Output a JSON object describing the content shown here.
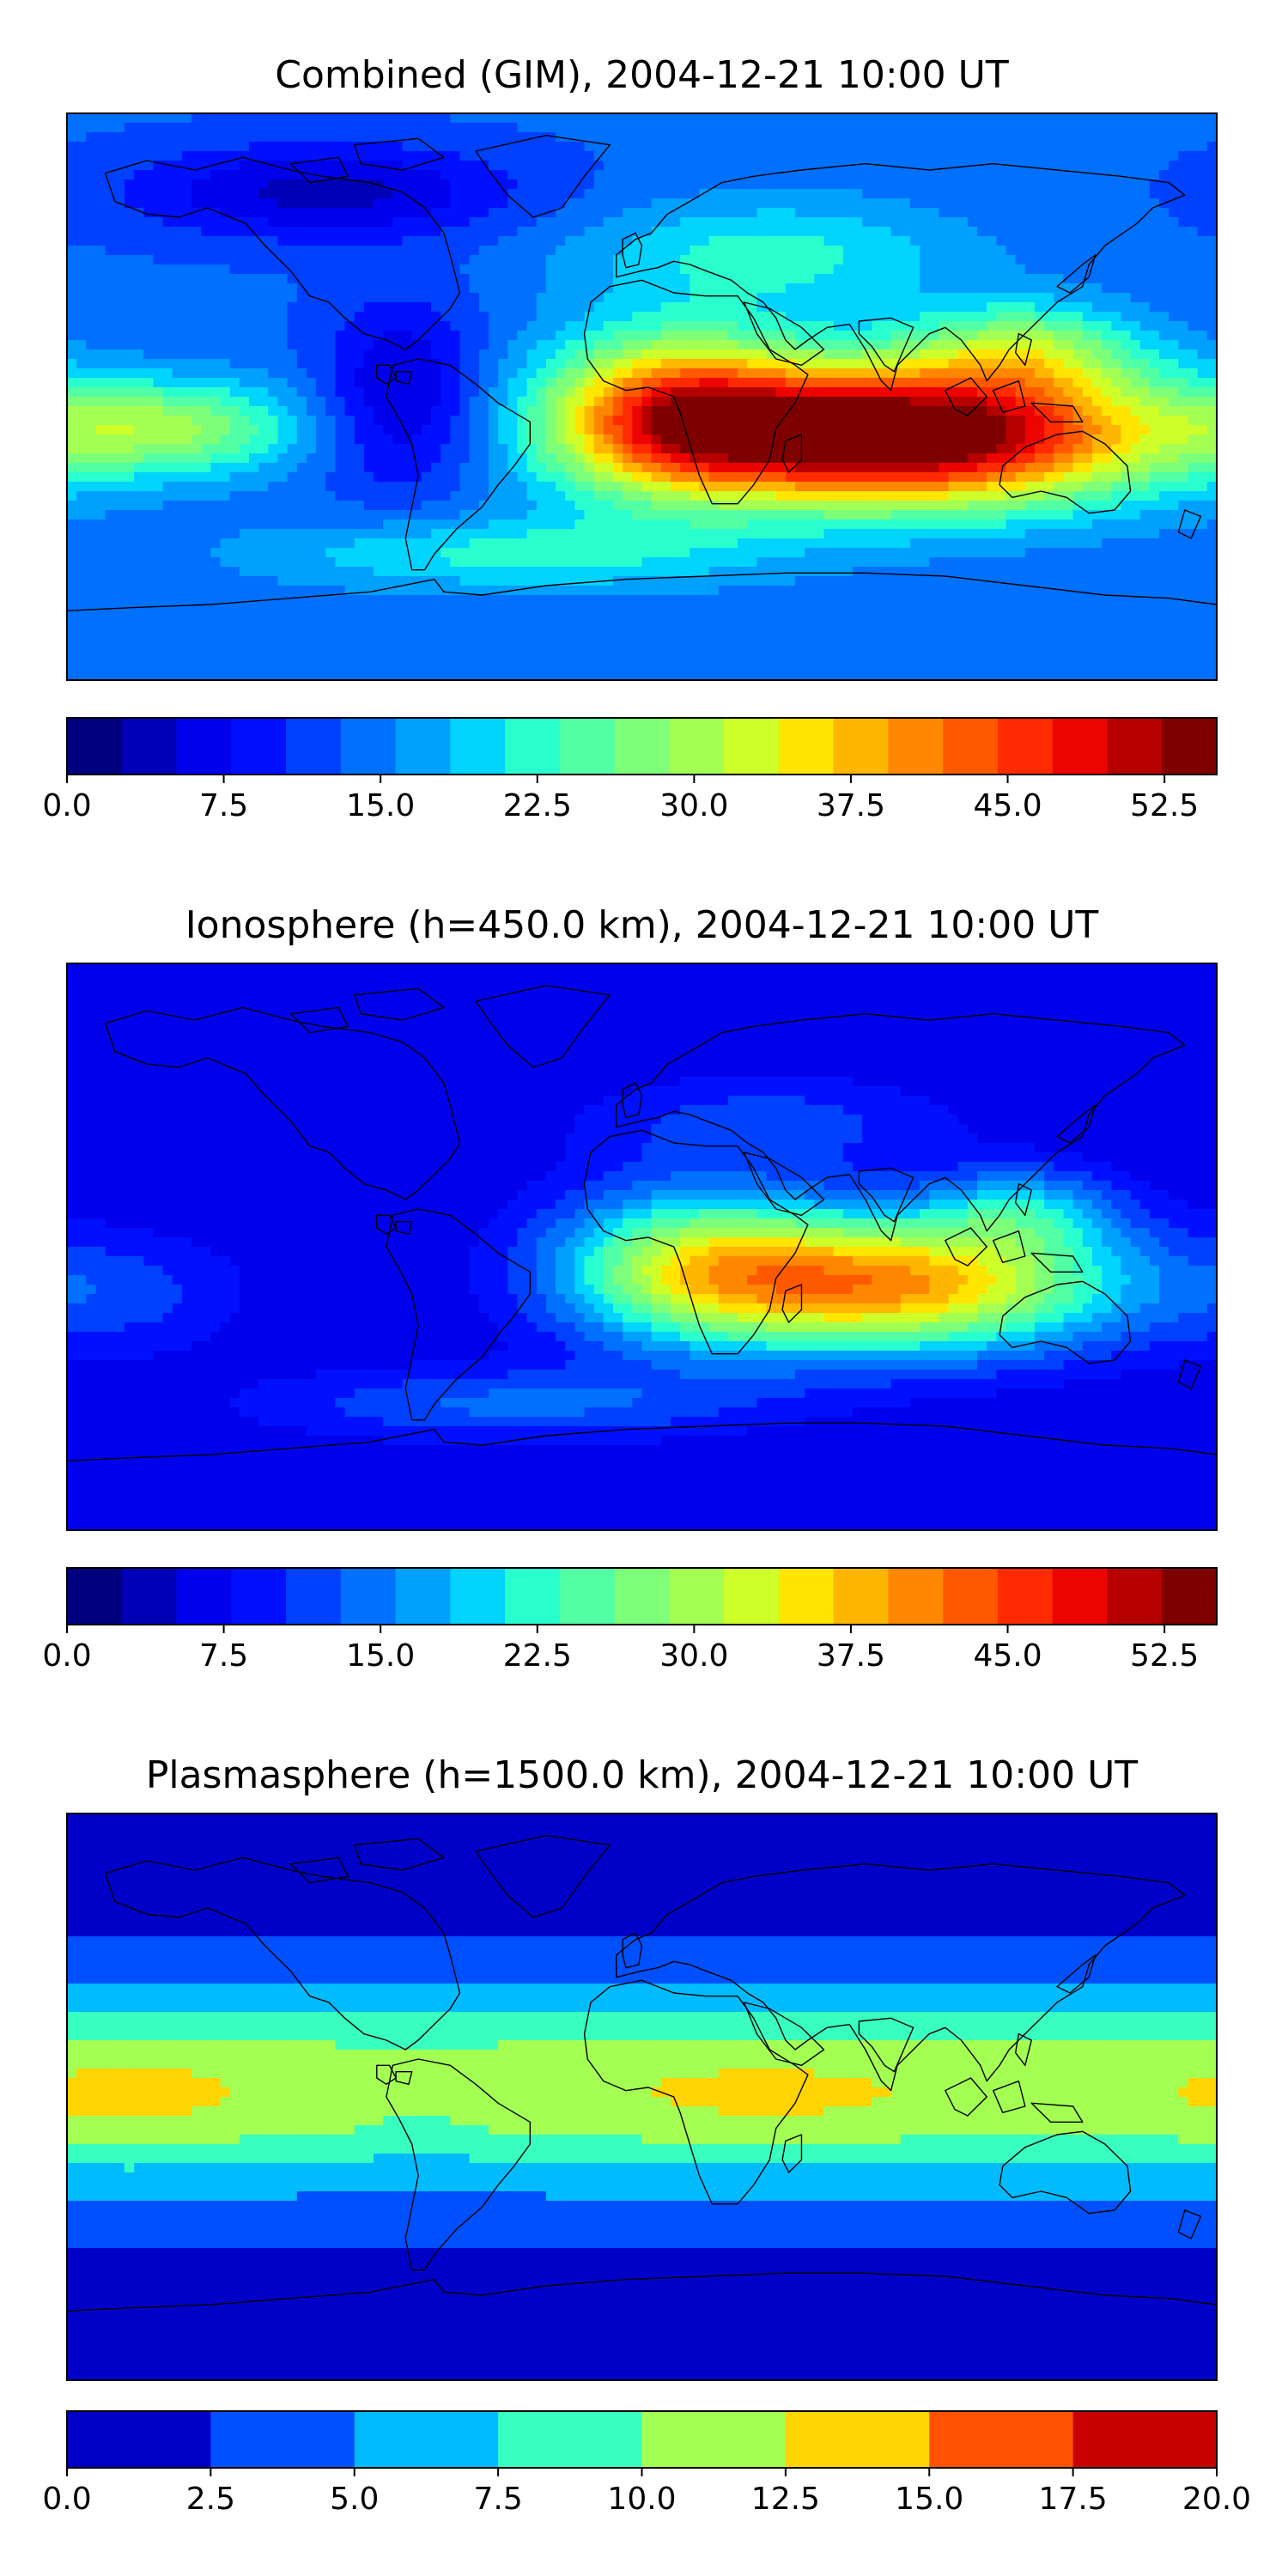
{
  "chart_data": [
    {
      "type": "heatmap",
      "title": "Combined (GIM), 2004-12-21 10:00 UT",
      "colorbar": {
        "min": 0.0,
        "max": 55.0,
        "step": 2.5,
        "tick_values": [
          0.0,
          7.5,
          15.0,
          22.5,
          30.0,
          37.5,
          45.0,
          52.5
        ],
        "tick_labels": [
          "0.0",
          "7.5",
          "15.0",
          "22.5",
          "30.0",
          "37.5",
          "45.0",
          "52.5"
        ],
        "colors": [
          "#00007f",
          "#0000b6",
          "#0000ed",
          "#0010ff",
          "#0040ff",
          "#0070ff",
          "#00a0ff",
          "#00d4ff",
          "#29ffce",
          "#53ffa4",
          "#7dff7a",
          "#a4ff53",
          "#ceff29",
          "#ffe500",
          "#ffb600",
          "#ff8700",
          "#ff5900",
          "#ff2a00",
          "#ed0400",
          "#b60000",
          "#7f0000"
        ]
      },
      "field": {
        "base": 13,
        "blobs": [
          {
            "lon": 82,
            "lat": -12,
            "amp": 44,
            "slon": 75,
            "slat": 22
          },
          {
            "lon": 10,
            "lat": -5,
            "amp": 24,
            "slon": 40,
            "slat": 25
          },
          {
            "lon": 120,
            "lat": 15,
            "amp": 12,
            "slon": 35,
            "slat": 15
          },
          {
            "lon": -150,
            "lat": -10,
            "amp": 14,
            "slon": 45,
            "slat": 15
          },
          {
            "lon": 40,
            "lat": 45,
            "amp": 8,
            "slon": 60,
            "slat": 18
          },
          {
            "lon": -40,
            "lat": -50,
            "amp": 8,
            "slon": 80,
            "slat": 12
          },
          {
            "lon": -100,
            "lat": 65,
            "amp": -9,
            "slon": 60,
            "slat": 15
          },
          {
            "lon": -75,
            "lat": 0,
            "amp": -9,
            "slon": 25,
            "slat": 30
          }
        ]
      }
    },
    {
      "type": "heatmap",
      "title": "Ionosphere  (h=450.0 km), 2004-12-21 10:00 UT",
      "colorbar": {
        "min": 0.0,
        "max": 55.0,
        "step": 2.5,
        "tick_values": [
          0.0,
          7.5,
          15.0,
          22.5,
          30.0,
          37.5,
          45.0,
          52.5
        ],
        "tick_labels": [
          "0.0",
          "7.5",
          "15.0",
          "22.5",
          "30.0",
          "37.5",
          "45.0",
          "52.5"
        ],
        "colors": [
          "#00007f",
          "#0000b6",
          "#0000ed",
          "#0010ff",
          "#0040ff",
          "#0070ff",
          "#00a0ff",
          "#00d4ff",
          "#29ffce",
          "#53ffa4",
          "#7dff7a",
          "#a4ff53",
          "#ceff29",
          "#ffe500",
          "#ffb600",
          "#ff8700",
          "#ff5900",
          "#ff2a00",
          "#ed0400",
          "#b60000",
          "#7f0000"
        ]
      },
      "field": {
        "base": 5,
        "blobs": [
          {
            "lon": 80,
            "lat": -12,
            "amp": 32,
            "slon": 70,
            "slat": 22
          },
          {
            "lon": 15,
            "lat": -5,
            "amp": 18,
            "slon": 45,
            "slat": 25
          },
          {
            "lon": 120,
            "lat": 12,
            "amp": 10,
            "slon": 30,
            "slat": 14
          },
          {
            "lon": -40,
            "lat": -50,
            "amp": 8,
            "slon": 80,
            "slat": 12
          },
          {
            "lon": 40,
            "lat": 40,
            "amp": 6,
            "slon": 60,
            "slat": 15
          },
          {
            "lon": -160,
            "lat": -15,
            "amp": 5,
            "slon": 40,
            "slat": 20
          }
        ]
      }
    },
    {
      "type": "heatmap",
      "title": "Plasmasphere (h=1500.0 km), 2004-12-21 10:00 UT",
      "colorbar": {
        "min": 0.0,
        "max": 20.0,
        "step": 2.5,
        "tick_values": [
          0.0,
          2.5,
          5.0,
          7.5,
          10.0,
          12.5,
          15.0,
          17.5,
          20.0
        ],
        "tick_labels": [
          "0.0",
          "2.5",
          "5.0",
          "7.5",
          "10.0",
          "12.5",
          "15.0",
          "17.5",
          "20.0"
        ],
        "colors": [
          "#0000c8",
          "#0050ff",
          "#00bcff",
          "#38ffc0",
          "#a4ff53",
          "#ffd400",
          "#ff5200",
          "#c80000"
        ]
      },
      "field": {
        "base": 1.5,
        "band": {
          "lat": 2,
          "amp": 10.5,
          "slat": 32
        },
        "blobs": [
          {
            "lon": -160,
            "lat": 0,
            "amp": 1.5,
            "slon": 30,
            "slat": 15
          },
          {
            "lon": 40,
            "lat": 0,
            "amp": 1.2,
            "slon": 40,
            "slat": 15
          },
          {
            "lon": -70,
            "lat": -10,
            "amp": -1.5,
            "slon": 20,
            "slat": 20
          }
        ]
      }
    }
  ]
}
